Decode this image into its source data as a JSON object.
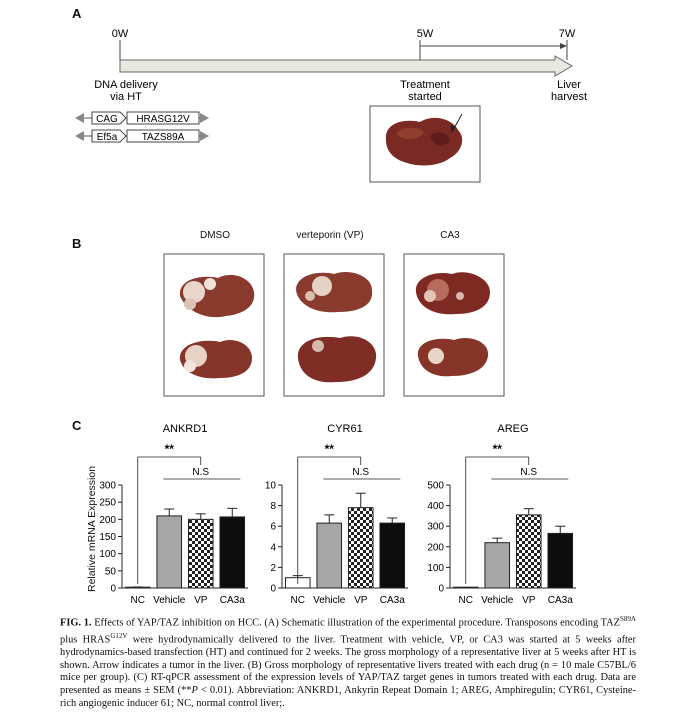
{
  "panel_a": {
    "label": "A",
    "timepoints": [
      "0W",
      "5W",
      "7W"
    ],
    "events": {
      "start": [
        "DNA delivery",
        "via HT"
      ],
      "treatment": [
        "Treatment",
        "started"
      ],
      "end": [
        "Liver",
        "harvest"
      ]
    },
    "constructs": [
      {
        "promoter": "CAG",
        "gene": "HRASG12V"
      },
      {
        "promoter": "Ef5a",
        "gene": "TAZS89A"
      }
    ]
  },
  "panel_b": {
    "label": "B",
    "groups": [
      "DMSO",
      "verteporin (VP)",
      "CA3"
    ]
  },
  "panel_c": {
    "label": "C",
    "ylabel": "Relative mRNA Expression"
  },
  "chart_data": [
    {
      "type": "bar",
      "title": "ANKRD1",
      "categories": [
        "NC",
        "Vehicle",
        "VP",
        "CA3a"
      ],
      "values": [
        2,
        210,
        200,
        207
      ],
      "errors": [
        1,
        20,
        16,
        25
      ],
      "ylim": [
        0,
        300
      ],
      "yticks": [
        "0",
        "50",
        "100",
        "150",
        "200",
        "250",
        "300"
      ],
      "annotations": [
        {
          "text": "**",
          "from": "NC",
          "to": "VP"
        },
        {
          "text": "N.S",
          "from": "Vehicle",
          "to": "CA3a"
        }
      ]
    },
    {
      "type": "bar",
      "title": "CYR61",
      "categories": [
        "NC",
        "Vehicle",
        "VP",
        "CA3a"
      ],
      "values": [
        1.0,
        6.3,
        7.8,
        6.3
      ],
      "errors": [
        0.2,
        0.8,
        1.4,
        0.5
      ],
      "ylim": [
        0,
        10
      ],
      "yticks": [
        "0",
        "2",
        "4",
        "6",
        "8",
        "10"
      ],
      "annotations": [
        {
          "text": "**",
          "from": "NC",
          "to": "VP"
        },
        {
          "text": "N.S",
          "from": "Vehicle",
          "to": "CA3a"
        }
      ]
    },
    {
      "type": "bar",
      "title": "AREG",
      "categories": [
        "NC",
        "Vehicle",
        "VP",
        "CA3a"
      ],
      "values": [
        2,
        220,
        355,
        265
      ],
      "errors": [
        1,
        22,
        30,
        35
      ],
      "ylim": [
        0,
        500
      ],
      "yticks": [
        "0",
        "100",
        "200",
        "300",
        "400",
        "500"
      ],
      "annotations": [
        {
          "text": "**",
          "from": "NC",
          "to": "VP"
        },
        {
          "text": "N.S",
          "from": "Vehicle",
          "to": "CA3a"
        }
      ]
    }
  ],
  "caption": {
    "fig": "FIG. 1.",
    "s1": "Effects of YAP/TAZ inhibition on HCC. (A) Schematic illustration of the experimental procedure. Transposons encoding TAZ",
    "sup1": "S89A",
    "s2": " plus HRAS",
    "sup2": "G12V",
    "s3": " were hydrodynamically delivered to the liver. Treatment with vehicle, VP, or CA3 was started at 5 weeks after hydrodynamics-based transfection (HT) and continued for 2 weeks. The gross morphology of a representative liver at 5 weeks after HT is shown. Arrow indicates a tumor in the liver. (B) Gross morphology of representative livers treated with each drug (n = 10 male C57BL/6 mice per group). (C) RT-qPCR assessment of the expression levels of YAP/TAZ target genes in tumors treated with each drug. Data are presented as means ± SEM (**",
    "p": "P",
    "s4": " < 0.01). Abbreviation: ANKRD1, Ankyrin Repeat Domain 1; AREG, Amphiregulin; CYR61, Cysteine-rich angiogenic inducer 61; NC, normal control liver;."
  }
}
